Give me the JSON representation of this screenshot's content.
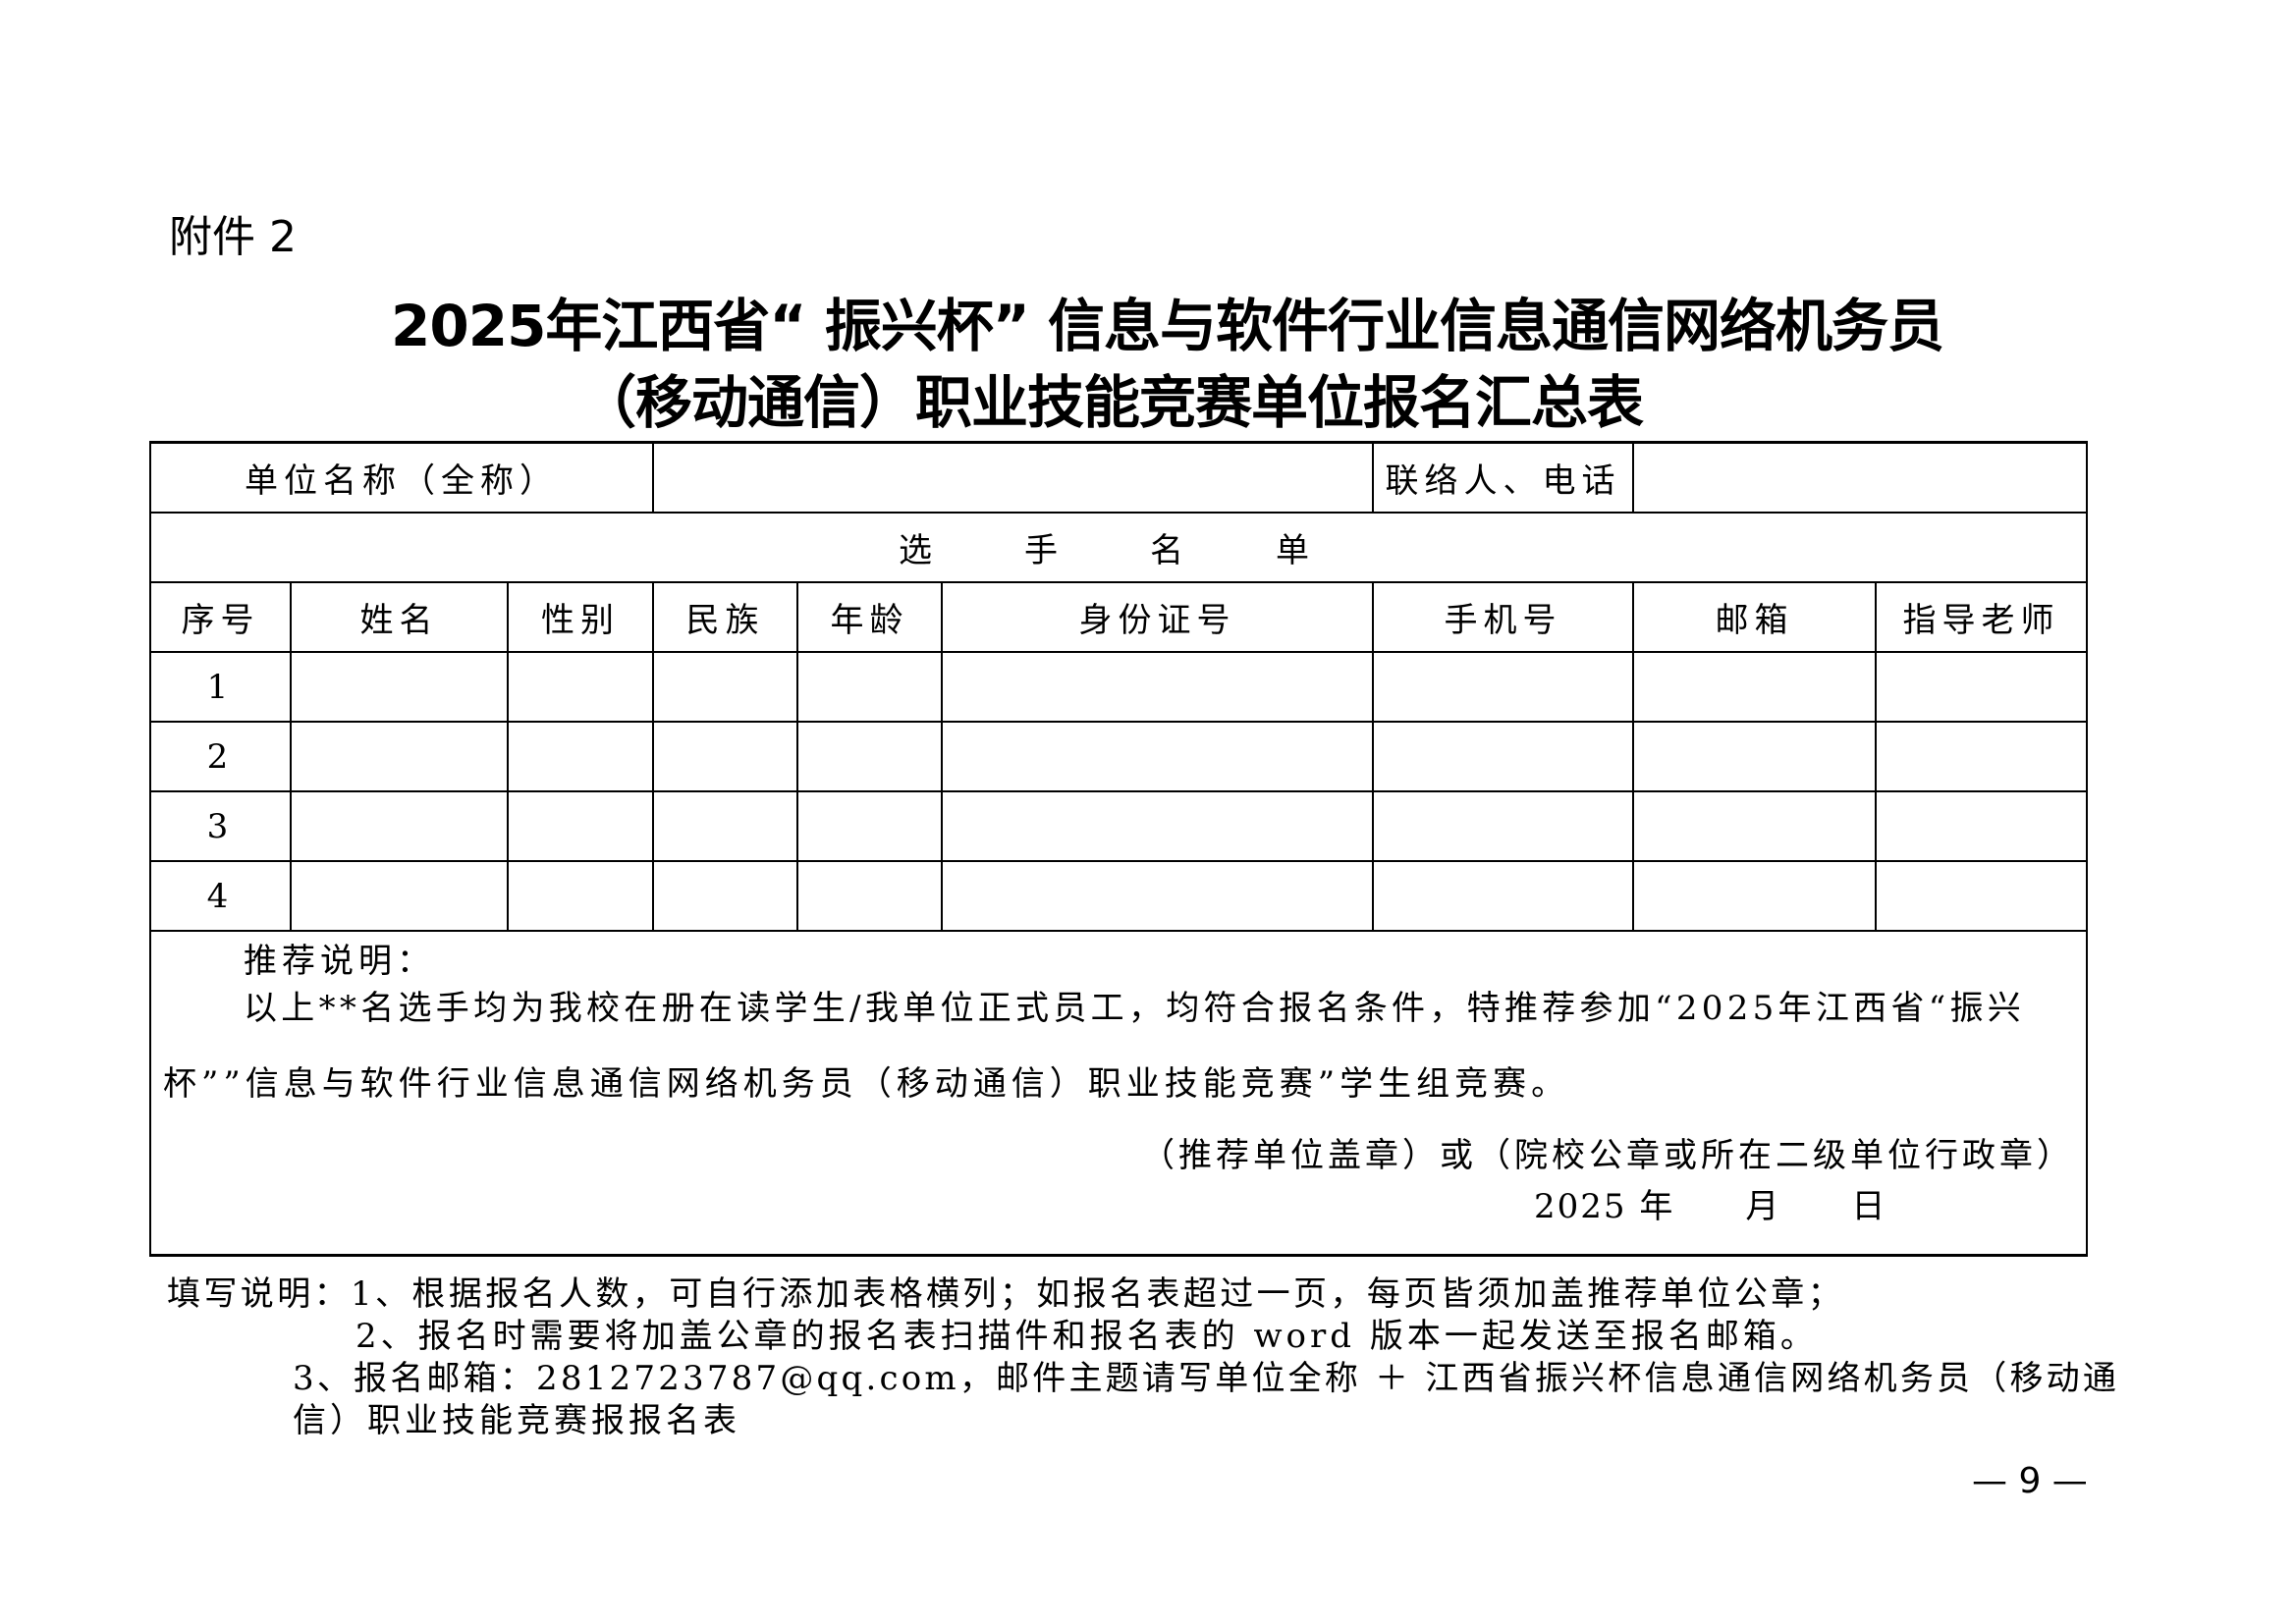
{
  "attachment_label": "附件 2",
  "title": {
    "line1": "2025年江西省“ 振兴杯” 信息与软件行业信息通信网络机务员",
    "line2": "（移动通信）职业技能竞赛单位报名汇总表"
  },
  "form": {
    "unit_name_label": "单位名称（全称）",
    "unit_name_value": "",
    "contact_label": "联络人、电话",
    "contact_value": "",
    "roster_label": "选　手　名　单",
    "columns": [
      "序号",
      "姓名",
      "性别",
      "民族",
      "年龄",
      "身份证号",
      "手机号",
      "邮箱",
      "指导老师"
    ],
    "rows": [
      [
        "1",
        "",
        "",
        "",
        "",
        "",
        "",
        "",
        ""
      ],
      [
        "2",
        "",
        "",
        "",
        "",
        "",
        "",
        "",
        ""
      ],
      [
        "3",
        "",
        "",
        "",
        "",
        "",
        "",
        "",
        ""
      ],
      [
        "4",
        "",
        "",
        "",
        "",
        "",
        "",
        "",
        ""
      ]
    ],
    "recommendation": {
      "heading": "推荐说明：",
      "line1": "以上**名选手均为我校在册在读学生/我单位正式员工，均符合报名条件，特推荐参加“2025年江西省“振兴",
      "line2": "杯””信息与软件行业信息通信网络机务员（移动通信）职业技能竞赛”学生组竞赛。",
      "seal": "（推荐单位盖章）或（院校公章或所在二级单位行政章）",
      "date": "2025 年　　月　　日"
    }
  },
  "fill_instructions": {
    "line1": "填写说明：1、根据报名人数，可自行添加表格横列；如报名表超过一页，每页皆须加盖推荐单位公章；",
    "line2": "2、报名时需要将加盖公章的报名表扫描件和报名表的 word 版本一起发送至报名邮箱。",
    "line3": "3、报名邮箱：2812723787@qq.com，邮件主题请写单位全称 ＋ 江西省振兴杯信息通信网络机务员（移动通",
    "line4": "信）职业技能竞赛报报名表"
  },
  "page_number": "— 9 —"
}
